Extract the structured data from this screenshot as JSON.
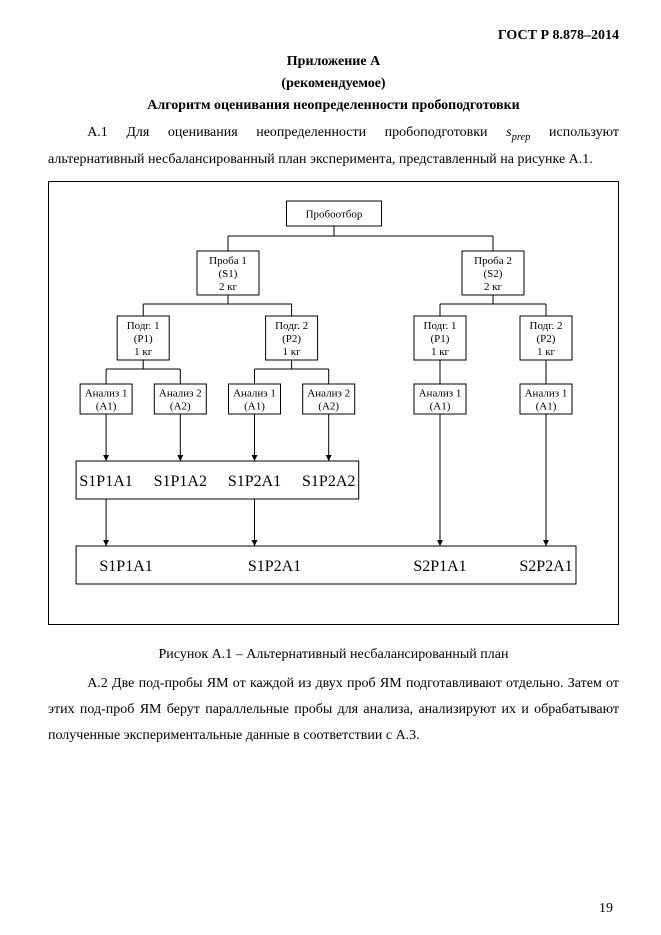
{
  "header": "ГОСТ Р 8.878–2014",
  "title1": "Приложение А",
  "title2": "(рекомендуемое)",
  "title3": "Алгоритм оценивания неопределенности пробоподготовки",
  "para1_pre": "А.1 Для  оценивания неопределенности пробоподготовки ",
  "para1_sym": "s",
  "para1_sub": "prep",
  "para1_post": " используют альтернативный несбалансированный план эксперимента, представленный на рисунке А.1.",
  "figcaption": "Рисунок А.1 – Альтернативный несбалансированный план",
  "para2": "А.2 Две под-пробы ЯМ от каждой из двух проб ЯМ подготавливают отдельно. Затем от этих под-проб ЯМ берут параллельные пробы для анализа, анализируют их и обрабатывают полученные экспериментальные данные в соответствии с А.3.",
  "pagenum": "19",
  "diagram": {
    "line_color": "#000000",
    "line_width": 1,
    "box_bg": "#ffffff",
    "font_size_small": 11,
    "font_size_big": 16,
    "nodes": {
      "root": {
        "lines": [
          "Пробоотбор"
        ]
      },
      "s1": {
        "lines": [
          "Проба 1",
          "(S1)",
          "2 кг"
        ]
      },
      "s2": {
        "lines": [
          "Проба 2",
          "(S2)",
          "2 кг"
        ]
      },
      "s1p1": {
        "lines": [
          "Подг. 1",
          "(P1)",
          "1 кг"
        ]
      },
      "s1p2": {
        "lines": [
          "Подг. 2",
          "(P2)",
          "1 кг"
        ]
      },
      "s2p1": {
        "lines": [
          "Подг. 1",
          "(P1)",
          "1 кг"
        ]
      },
      "s2p2": {
        "lines": [
          "Подг. 2",
          "(P2)",
          "1 кг"
        ]
      },
      "a1": {
        "lines": [
          "Анализ 1",
          "(A1)"
        ]
      },
      "a2": {
        "lines": [
          "Анализ 2",
          "(A2)"
        ]
      },
      "a3": {
        "lines": [
          "Анализ 1",
          "(A1)"
        ]
      },
      "a4": {
        "lines": [
          "Анализ 2",
          "(A2)"
        ]
      },
      "a5": {
        "lines": [
          "Анализ 1",
          "(A1)"
        ]
      },
      "a6": {
        "lines": [
          "Анализ 1",
          "(A1)"
        ]
      }
    },
    "result_row1": [
      "S1P1A1",
      "S1P1A2",
      "S1P2A1",
      "S1P2A2"
    ],
    "result_row2": [
      "S1P1A1",
      "S1P2A1",
      "S2P1A1",
      "S2P2A1"
    ]
  }
}
